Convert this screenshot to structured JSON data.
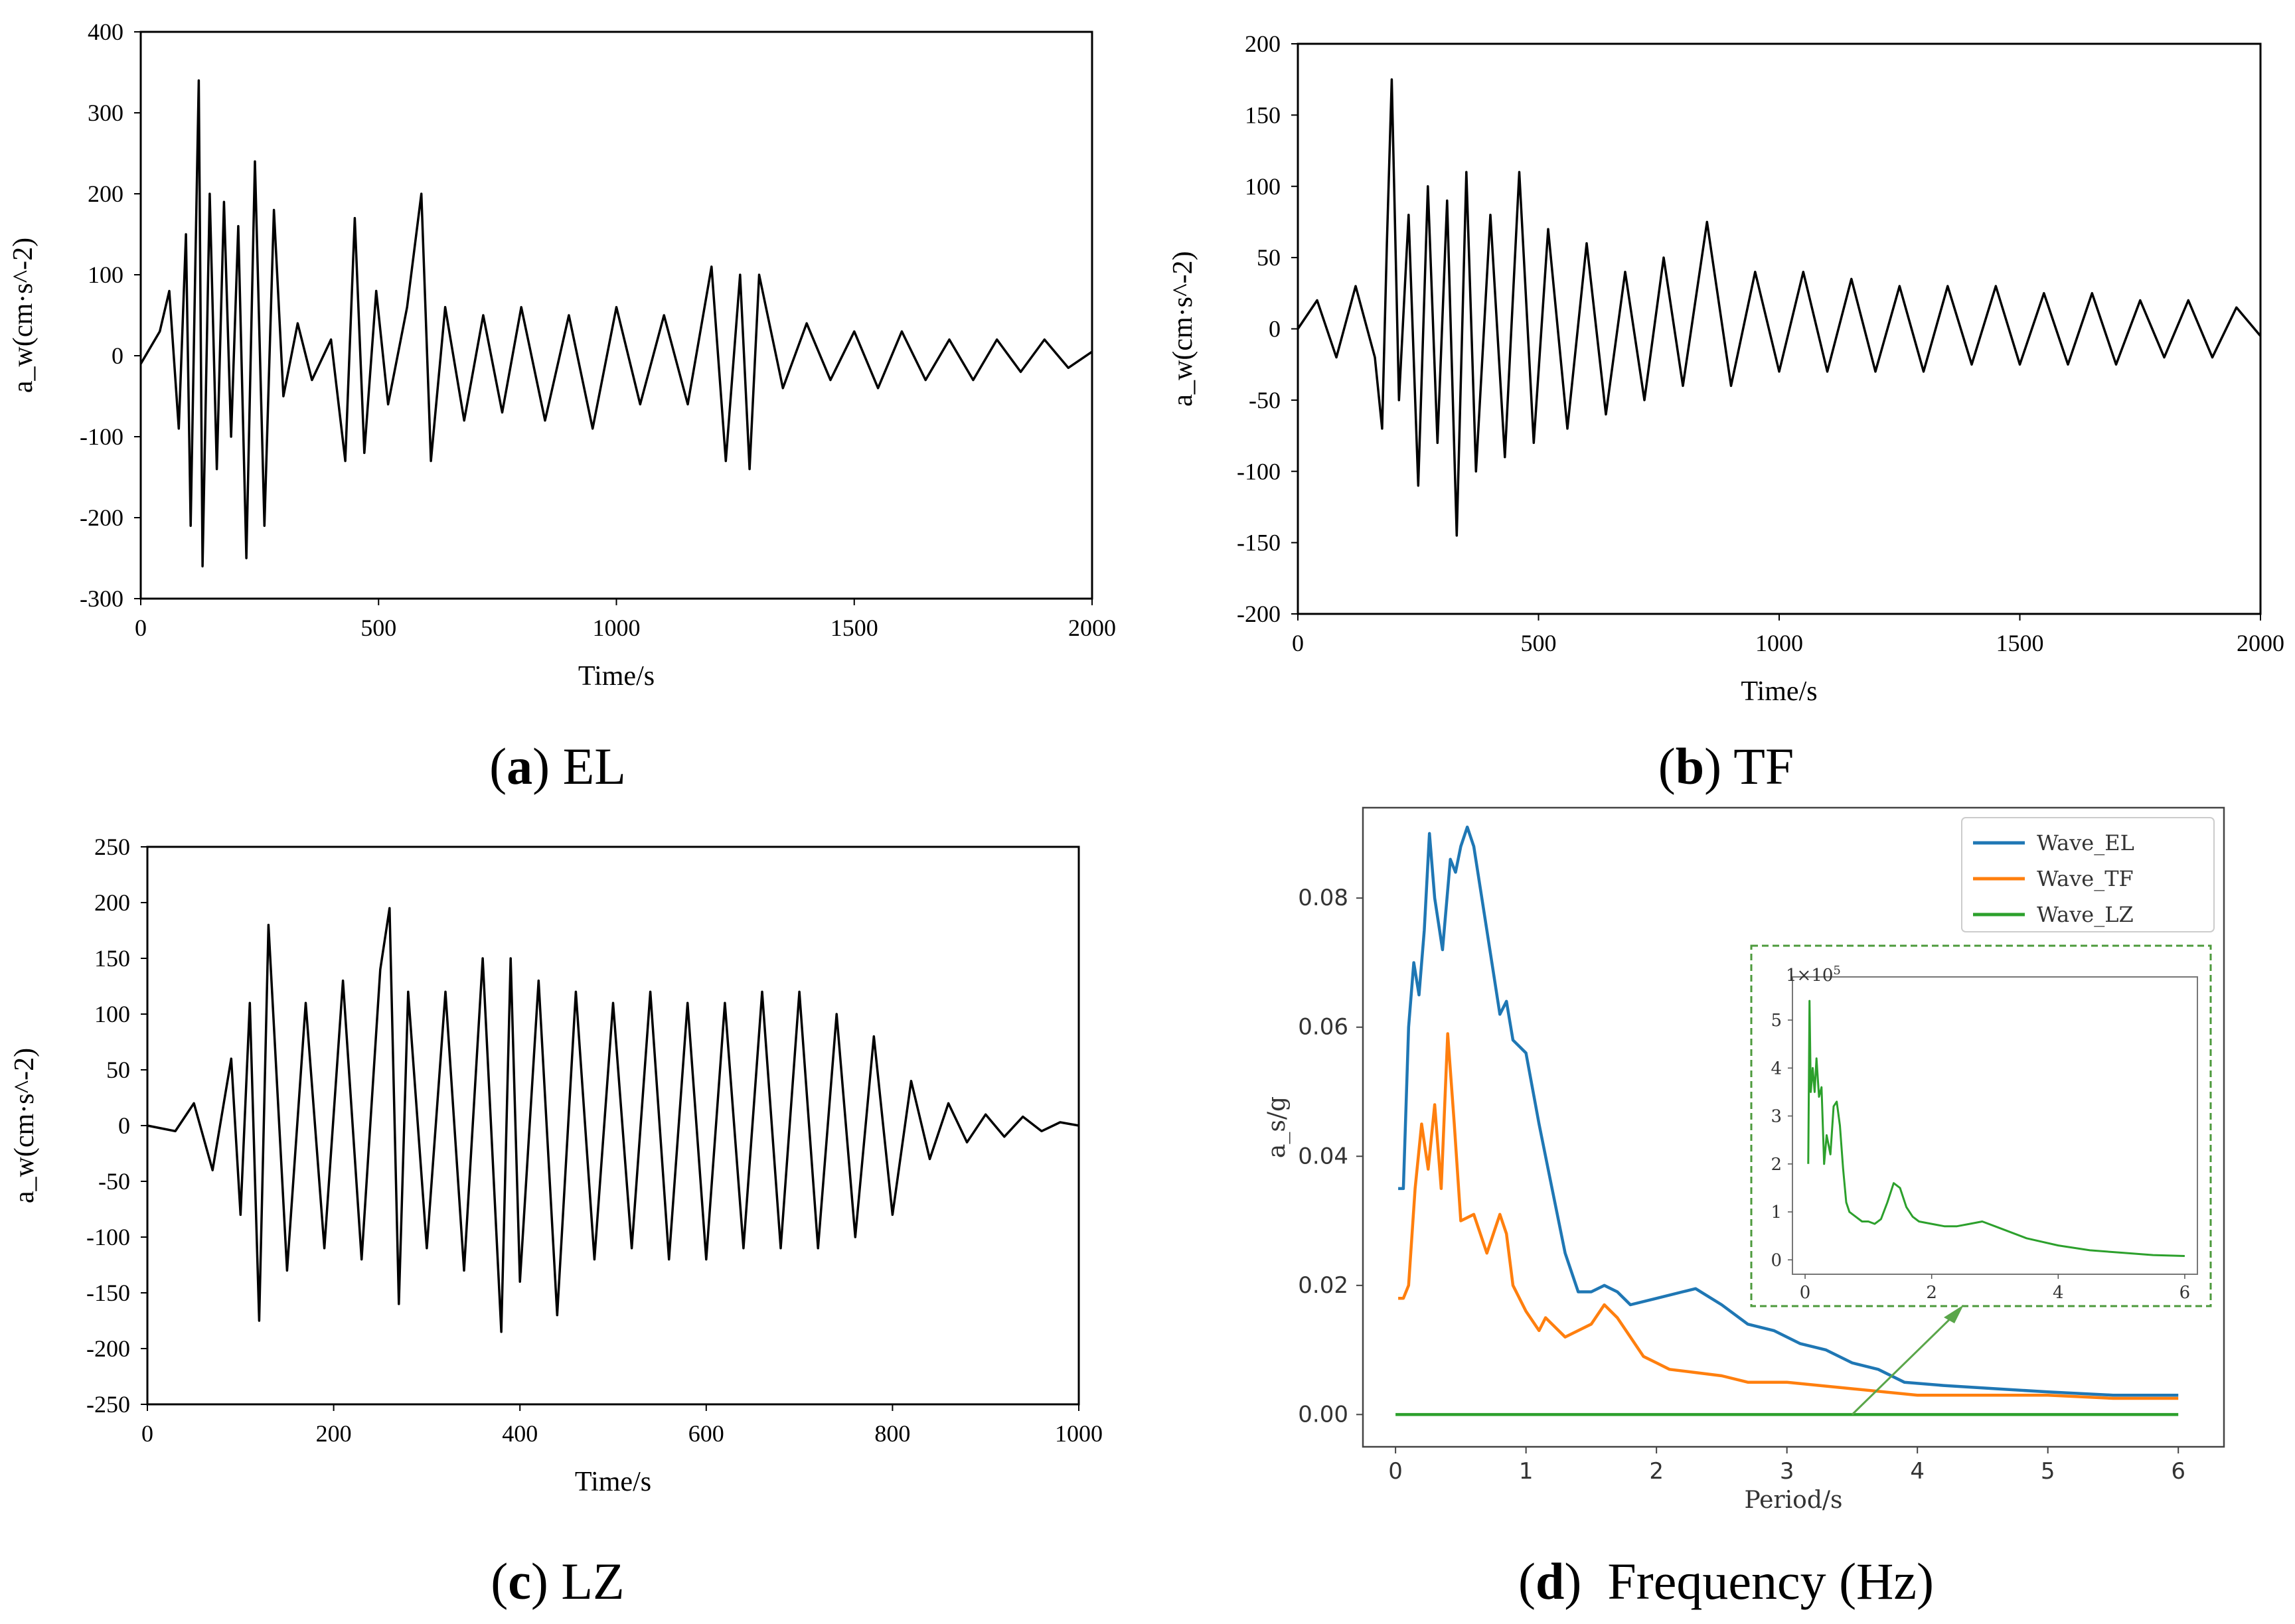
{
  "chart_data": [
    {
      "id": "a",
      "type": "line",
      "caption_letter": "a",
      "caption_text": "EL",
      "xlabel": "Time/s",
      "ylabel": "a_w(cm·s^-2)",
      "xlim": [
        0,
        2000
      ],
      "ylim": [
        -300,
        400
      ],
      "xticks": [
        "0",
        "500",
        "1000",
        "1500",
        "2000"
      ],
      "yticks": [
        "400",
        "300",
        "200",
        "100",
        "0",
        "-100",
        "-200",
        "-300"
      ],
      "x": [
        0,
        40,
        60,
        80,
        95,
        105,
        115,
        122,
        130,
        145,
        160,
        175,
        190,
        205,
        222,
        240,
        260,
        280,
        300,
        330,
        360,
        400,
        430,
        450,
        470,
        495,
        520,
        560,
        590,
        610,
        640,
        680,
        720,
        760,
        800,
        850,
        900,
        950,
        1000,
        1050,
        1100,
        1150,
        1200,
        1230,
        1260,
        1280,
        1300,
        1350,
        1400,
        1450,
        1500,
        1550,
        1600,
        1650,
        1700,
        1750,
        1800,
        1850,
        1900,
        1950,
        2000
      ],
      "y": [
        -10,
        30,
        80,
        -90,
        150,
        -210,
        120,
        340,
        -260,
        200,
        -140,
        190,
        -100,
        160,
        -250,
        240,
        -210,
        180,
        -50,
        40,
        -30,
        20,
        -130,
        170,
        -120,
        80,
        -60,
        60,
        200,
        -130,
        60,
        -80,
        50,
        -70,
        60,
        -80,
        50,
        -90,
        60,
        -60,
        50,
        -60,
        110,
        -130,
        100,
        -140,
        100,
        -40,
        40,
        -30,
        30,
        -40,
        30,
        -30,
        20,
        -30,
        20,
        -20,
        20,
        -15,
        5
      ]
    },
    {
      "id": "b",
      "type": "line",
      "caption_letter": "b",
      "caption_text": "TF",
      "xlabel": "Time/s",
      "ylabel": "a_w(cm·s^-2)",
      "xlim": [
        0,
        2000
      ],
      "ylim": [
        -200,
        200
      ],
      "xticks": [
        "0",
        "500",
        "1000",
        "1500",
        "2000"
      ],
      "yticks": [
        "200",
        "150",
        "100",
        "50",
        "0",
        "-50",
        "-100",
        "-150",
        "-200"
      ],
      "x": [
        0,
        40,
        80,
        120,
        160,
        175,
        185,
        195,
        210,
        230,
        250,
        270,
        290,
        310,
        330,
        350,
        370,
        400,
        430,
        460,
        490,
        520,
        560,
        600,
        640,
        680,
        720,
        760,
        800,
        850,
        900,
        950,
        1000,
        1050,
        1100,
        1150,
        1200,
        1250,
        1300,
        1350,
        1400,
        1450,
        1500,
        1550,
        1600,
        1650,
        1700,
        1750,
        1800,
        1850,
        1900,
        1950,
        2000
      ],
      "y": [
        0,
        20,
        -20,
        30,
        -20,
        -70,
        60,
        175,
        -50,
        80,
        -110,
        100,
        -80,
        90,
        -145,
        110,
        -100,
        80,
        -90,
        110,
        -80,
        70,
        -70,
        60,
        -60,
        40,
        -50,
        50,
        -40,
        75,
        -40,
        40,
        -30,
        40,
        -30,
        35,
        -30,
        30,
        -30,
        30,
        -25,
        30,
        -25,
        25,
        -25,
        25,
        -25,
        20,
        -20,
        20,
        -20,
        15,
        -5
      ]
    },
    {
      "id": "c",
      "type": "line",
      "caption_letter": "c",
      "caption_text": "LZ",
      "xlabel": "Time/s",
      "ylabel": "a_w(cm·s^-2)",
      "xlim": [
        0,
        1000
      ],
      "ylim": [
        -250,
        250
      ],
      "xticks": [
        "0",
        "200",
        "400",
        "600",
        "800",
        "1000"
      ],
      "yticks": [
        "250",
        "200",
        "150",
        "100",
        "50",
        "0",
        "-50",
        "-100",
        "-150",
        "-200",
        "-250"
      ],
      "x": [
        0,
        30,
        50,
        70,
        90,
        100,
        110,
        120,
        130,
        150,
        170,
        190,
        210,
        230,
        250,
        260,
        270,
        280,
        300,
        320,
        340,
        360,
        380,
        390,
        400,
        420,
        440,
        460,
        480,
        500,
        520,
        540,
        560,
        580,
        600,
        620,
        640,
        660,
        680,
        700,
        720,
        740,
        760,
        780,
        800,
        820,
        840,
        860,
        880,
        900,
        920,
        940,
        960,
        980,
        1000
      ],
      "y": [
        0,
        -5,
        20,
        -40,
        60,
        -80,
        110,
        -175,
        180,
        -130,
        110,
        -110,
        130,
        -120,
        140,
        195,
        -160,
        120,
        -110,
        120,
        -130,
        150,
        -185,
        150,
        -140,
        130,
        -170,
        120,
        -120,
        110,
        -110,
        120,
        -120,
        110,
        -120,
        110,
        -110,
        120,
        -110,
        120,
        -110,
        100,
        -100,
        80,
        -80,
        40,
        -30,
        20,
        -15,
        10,
        -10,
        8,
        -5,
        3,
        0
      ]
    },
    {
      "id": "d",
      "type": "line",
      "caption_letter": "d",
      "caption_text": "Frequency (Hz)",
      "xlabel": "Period/s",
      "ylabel": "a_s/g",
      "xlim": [
        -0.25,
        6.35
      ],
      "ylim": [
        -0.005,
        0.094
      ],
      "xticks": [
        "0",
        "1",
        "2",
        "3",
        "4",
        "5",
        "6"
      ],
      "yticks": [
        "0.08",
        "0.06",
        "0.04",
        "0.02",
        "0.00"
      ],
      "legend_position": "top-right",
      "series": [
        {
          "name": "Wave_EL",
          "color": "#1f77b4",
          "x": [
            0.02,
            0.06,
            0.1,
            0.14,
            0.18,
            0.22,
            0.26,
            0.3,
            0.36,
            0.42,
            0.46,
            0.5,
            0.55,
            0.6,
            0.7,
            0.8,
            0.85,
            0.9,
            1.0,
            1.1,
            1.2,
            1.3,
            1.4,
            1.5,
            1.6,
            1.7,
            1.8,
            2.0,
            2.2,
            2.3,
            2.5,
            2.7,
            2.9,
            3.1,
            3.3,
            3.5,
            3.7,
            3.9,
            4.2,
            4.6,
            5.0,
            5.5,
            6.0
          ],
          "y": [
            0.035,
            0.035,
            0.06,
            0.07,
            0.065,
            0.075,
            0.09,
            0.08,
            0.072,
            0.086,
            0.084,
            0.088,
            0.091,
            0.088,
            0.075,
            0.062,
            0.064,
            0.058,
            0.056,
            0.045,
            0.035,
            0.025,
            0.019,
            0.019,
            0.02,
            0.019,
            0.017,
            0.018,
            0.019,
            0.0195,
            0.017,
            0.014,
            0.013,
            0.011,
            0.01,
            0.008,
            0.007,
            0.005,
            0.0045,
            0.004,
            0.0035,
            0.003,
            0.003
          ]
        },
        {
          "name": "Wave_TF",
          "color": "#ff7f0e",
          "x": [
            0.02,
            0.06,
            0.1,
            0.15,
            0.2,
            0.25,
            0.3,
            0.35,
            0.4,
            0.45,
            0.5,
            0.6,
            0.7,
            0.75,
            0.8,
            0.85,
            0.9,
            1.0,
            1.1,
            1.15,
            1.2,
            1.3,
            1.4,
            1.5,
            1.6,
            1.7,
            1.8,
            1.9,
            2.0,
            2.1,
            2.3,
            2.5,
            2.7,
            3.0,
            3.5,
            4.0,
            4.5,
            5.0,
            5.5,
            6.0
          ],
          "y": [
            0.018,
            0.018,
            0.02,
            0.035,
            0.045,
            0.038,
            0.048,
            0.035,
            0.059,
            0.045,
            0.03,
            0.031,
            0.025,
            0.028,
            0.031,
            0.028,
            0.02,
            0.016,
            0.013,
            0.015,
            0.014,
            0.012,
            0.013,
            0.014,
            0.017,
            0.015,
            0.012,
            0.009,
            0.008,
            0.007,
            0.0065,
            0.006,
            0.005,
            0.005,
            0.004,
            0.003,
            0.003,
            0.003,
            0.0025,
            0.0025
          ]
        },
        {
          "name": "Wave_LZ",
          "color": "#2ca02c",
          "x": [
            0.0,
            6.0
          ],
          "y": [
            0.0,
            0.0
          ]
        }
      ],
      "inset": {
        "title_exponent": "1×10^5",
        "xlim": [
          -0.2,
          6.2
        ],
        "ylim": [
          -0.3,
          5.9
        ],
        "xticks": [
          "0",
          "2",
          "4",
          "6"
        ],
        "yticks": [
          "5",
          "4",
          "3",
          "2",
          "1",
          "0"
        ],
        "color": "#2ca02c",
        "x": [
          0.05,
          0.07,
          0.09,
          0.12,
          0.15,
          0.18,
          0.22,
          0.26,
          0.3,
          0.34,
          0.4,
          0.45,
          0.5,
          0.55,
          0.6,
          0.65,
          0.7,
          0.8,
          0.9,
          1.0,
          1.1,
          1.2,
          1.3,
          1.4,
          1.5,
          1.6,
          1.7,
          1.8,
          2.0,
          2.2,
          2.4,
          2.6,
          2.8,
          3.0,
          3.5,
          4.0,
          4.5,
          5.0,
          5.5,
          6.0
        ],
        "y": [
          2.0,
          5.4,
          3.5,
          4.0,
          3.5,
          4.2,
          3.4,
          3.6,
          2.0,
          2.6,
          2.2,
          3.2,
          3.3,
          2.8,
          1.9,
          1.2,
          1.0,
          0.9,
          0.8,
          0.8,
          0.75,
          0.85,
          1.2,
          1.6,
          1.5,
          1.1,
          0.9,
          0.8,
          0.75,
          0.7,
          0.7,
          0.75,
          0.8,
          0.7,
          0.45,
          0.3,
          0.2,
          0.15,
          0.1,
          0.08
        ]
      }
    }
  ]
}
